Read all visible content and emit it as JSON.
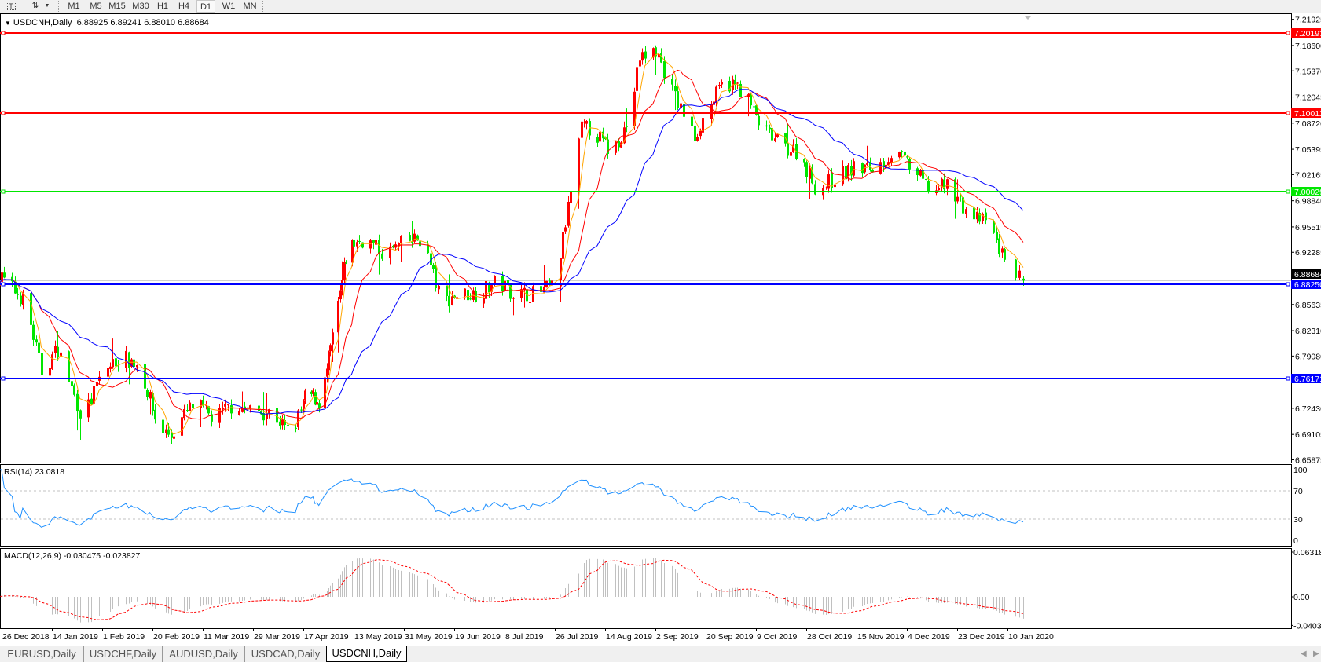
{
  "toolbar": {
    "text_tool_icon": "text-T-icon",
    "objects_icon": "arrows-objects-icon",
    "timeframes": [
      "M1",
      "M5",
      "M15",
      "M30",
      "H1",
      "H4",
      "D1",
      "W1",
      "MN"
    ],
    "active_timeframe": "D1"
  },
  "header": {
    "symbol_timeframe": "USDCNH,Daily",
    "ohlc": "6.88925 6.89241 6.88010 6.88684"
  },
  "tabs": [
    {
      "label": "EURUSD,Daily",
      "active": false
    },
    {
      "label": "USDCHF,Daily",
      "active": false
    },
    {
      "label": "AUDUSD,Daily",
      "active": false
    },
    {
      "label": "USDCAD,Daily",
      "active": false
    },
    {
      "label": "USDCNH,Daily",
      "active": true
    }
  ],
  "chart_data": {
    "type": "candlestick",
    "symbol": "USDCNH",
    "timeframe": "Daily",
    "colors": {
      "bull": "#ff0000",
      "bear": "#00e600",
      "ma_fast": "#ffa500",
      "ma_mid": "#ff0000",
      "ma_slow": "#0000ff",
      "rsi": "#1e90ff",
      "macd_hist": "#c0c0c0",
      "macd_signal": "#ff0000"
    },
    "price_axis_ticks": [
      "7.21925",
      "7.18600",
      "7.15370",
      "7.12045",
      "7.08720",
      "7.05395",
      "7.02165",
      "6.98840",
      "6.95515",
      "6.92285",
      "6.85635",
      "6.82310",
      "6.79080",
      "6.72430",
      "6.69105",
      "6.65875"
    ],
    "current_price": "6.88684",
    "horizontal_lines": [
      {
        "price": "7.20193",
        "color": "#ff0000"
      },
      {
        "price": "7.10011",
        "color": "#ff0000"
      },
      {
        "price": "7.00029",
        "color": "#00e600"
      },
      {
        "price": "6.88250",
        "color": "#0000ff"
      },
      {
        "price": "6.76171",
        "color": "#0000ff"
      }
    ],
    "x_labels": [
      "26 Dec 2018",
      "14 Jan 2019",
      "1 Feb 2019",
      "20 Feb 2019",
      "11 Mar 2019",
      "29 Mar 2019",
      "17 Apr 2019",
      "13 May 2019",
      "31 May 2019",
      "19 Jun 2019",
      "8 Jul 2019",
      "26 Jul 2019",
      "14 Aug 2019",
      "2 Sep 2019",
      "20 Sep 2019",
      "9 Oct 2019",
      "28 Oct 2019",
      "15 Nov 2019",
      "4 Dec 2019",
      "23 Dec 2019",
      "10 Jan 2020"
    ],
    "approx_closes": [
      [
        "2018-12-26",
        6.89
      ],
      [
        "2019-01-04",
        6.86
      ],
      [
        "2019-01-10",
        6.77
      ],
      [
        "2019-01-16",
        6.8
      ],
      [
        "2019-01-25",
        6.71
      ],
      [
        "2019-02-01",
        6.77
      ],
      [
        "2019-02-08",
        6.79
      ],
      [
        "2019-02-15",
        6.78
      ],
      [
        "2019-02-22",
        6.7
      ],
      [
        "2019-02-27",
        6.69
      ],
      [
        "2019-03-05",
        6.72
      ],
      [
        "2019-03-08",
        6.73
      ],
      [
        "2019-03-15",
        6.71
      ],
      [
        "2019-03-22",
        6.73
      ],
      [
        "2019-03-29",
        6.72
      ],
      [
        "2019-04-05",
        6.72
      ],
      [
        "2019-04-12",
        6.69
      ],
      [
        "2019-04-19",
        6.745
      ],
      [
        "2019-04-26",
        6.73
      ],
      [
        "2019-05-06",
        6.87
      ],
      [
        "2019-05-10",
        6.93
      ],
      [
        "2019-05-17",
        6.94
      ],
      [
        "2019-05-24",
        6.92
      ],
      [
        "2019-05-31",
        6.935
      ],
      [
        "2019-06-07",
        6.94
      ],
      [
        "2019-06-14",
        6.86
      ],
      [
        "2019-06-21",
        6.87
      ],
      [
        "2019-06-28",
        6.87
      ],
      [
        "2019-07-05",
        6.885
      ],
      [
        "2019-07-12",
        6.87
      ],
      [
        "2019-07-19",
        6.87
      ],
      [
        "2019-07-26",
        6.88
      ],
      [
        "2019-08-05",
        7.08
      ],
      [
        "2019-08-09",
        7.08
      ],
      [
        "2019-08-16",
        7.05
      ],
      [
        "2019-08-23",
        7.09
      ],
      [
        "2019-08-27",
        7.17
      ],
      [
        "2019-09-02",
        7.18
      ],
      [
        "2019-09-09",
        7.12
      ],
      [
        "2019-09-16",
        7.07
      ],
      [
        "2019-09-20",
        7.1
      ],
      [
        "2019-09-27",
        7.14
      ],
      [
        "2019-10-04",
        7.13
      ],
      [
        "2019-10-11",
        7.08
      ],
      [
        "2019-10-18",
        7.06
      ],
      [
        "2019-10-25",
        7.05
      ],
      [
        "2019-11-01",
        7.0
      ],
      [
        "2019-11-08",
        7.02
      ],
      [
        "2019-11-15",
        7.03
      ],
      [
        "2019-11-22",
        7.03
      ],
      [
        "2019-11-29",
        7.05
      ],
      [
        "2019-12-06",
        7.03
      ],
      [
        "2019-12-13",
        7.0
      ],
      [
        "2019-12-20",
        7.01
      ],
      [
        "2019-12-27",
        6.97
      ],
      [
        "2020-01-03",
        6.96
      ],
      [
        "2020-01-08",
        6.92
      ],
      [
        "2020-01-14",
        6.887
      ]
    ],
    "rsi": {
      "label": "RSI(14) 23.0818",
      "ticks": [
        "100",
        "70",
        "30",
        "0"
      ],
      "levels": [
        70,
        30
      ]
    },
    "macd": {
      "label": "MACD(12,26,9) -0.030475 -0.023827",
      "ticks": [
        "0.063184",
        "0.00",
        "-0.040355"
      ]
    }
  }
}
